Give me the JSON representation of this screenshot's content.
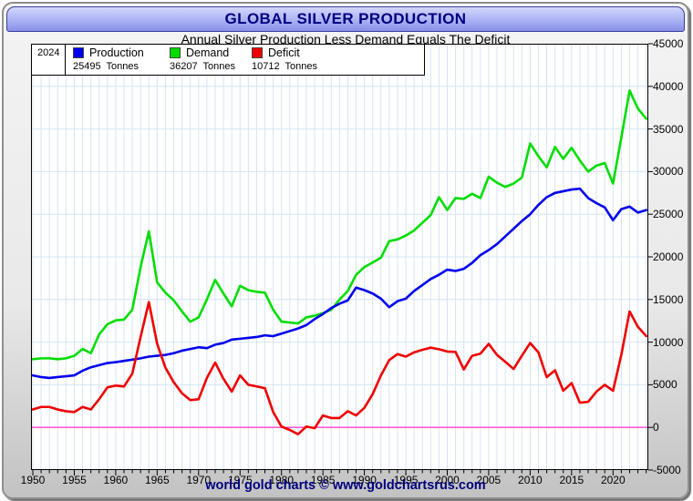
{
  "window": {
    "title": "GLOBAL SILVER PRODUCTION",
    "subtitle": "Annual Silver Production Less Demand Equals The Deficit",
    "footer": "world gold charts © www.goldchartsrus.com"
  },
  "legend": {
    "year": "2024",
    "items": [
      {
        "label": "Production",
        "value": "25495  Tonnes",
        "color": "#0000ee"
      },
      {
        "label": "Demand",
        "value": "36207  Tonnes",
        "color": "#00dd00"
      },
      {
        "label": "Deficit",
        "value": "10712  Tonnes",
        "color": "#ee0000"
      }
    ]
  },
  "colors": {
    "title_text": "#000080",
    "grid": "#d6e4f6",
    "zero_line": "#ff44cc",
    "axis": "#000000"
  },
  "chart_data": {
    "type": "line",
    "title": "GLOBAL SILVER PRODUCTION",
    "subtitle": "Annual Silver Production Less Demand Equals The Deficit",
    "unit": "Tonnes",
    "grid": true,
    "legend_position": "top-left",
    "ylim": [
      -5000,
      45000
    ],
    "ytick_step": 5000,
    "xticks": [
      1950,
      1955,
      1960,
      1965,
      1970,
      1975,
      1980,
      1985,
      1990,
      1995,
      2000,
      2005,
      2010,
      2015,
      2020
    ],
    "x": [
      1950,
      1951,
      1952,
      1953,
      1954,
      1955,
      1956,
      1957,
      1958,
      1959,
      1960,
      1961,
      1962,
      1963,
      1964,
      1965,
      1966,
      1967,
      1968,
      1969,
      1970,
      1971,
      1972,
      1973,
      1974,
      1975,
      1976,
      1977,
      1978,
      1979,
      1980,
      1981,
      1982,
      1983,
      1984,
      1985,
      1986,
      1987,
      1988,
      1989,
      1990,
      1991,
      1992,
      1993,
      1994,
      1995,
      1996,
      1997,
      1998,
      1999,
      2000,
      2001,
      2002,
      2003,
      2004,
      2005,
      2006,
      2007,
      2008,
      2009,
      2010,
      2011,
      2012,
      2013,
      2014,
      2015,
      2016,
      2017,
      2018,
      2019,
      2020,
      2021,
      2022,
      2023,
      2024
    ],
    "series": [
      {
        "name": "Production",
        "color": "#0000ee",
        "values": [
          6100,
          5900,
          5800,
          5900,
          6000,
          6100,
          6650,
          7050,
          7300,
          7550,
          7650,
          7800,
          7950,
          8100,
          8300,
          8400,
          8500,
          8700,
          9000,
          9200,
          9400,
          9300,
          9700,
          9900,
          10300,
          10400,
          10500,
          10600,
          10800,
          10700,
          11000,
          11300,
          11600,
          12000,
          12700,
          13300,
          14000,
          14500,
          14900,
          16400,
          16100,
          15700,
          15100,
          14100,
          14800,
          15100,
          16000,
          16700,
          17400,
          17900,
          18500,
          18350,
          18600,
          19300,
          20200,
          20800,
          21500,
          22400,
          23300,
          24200,
          25000,
          26100,
          27000,
          27500,
          27700,
          27900,
          28000,
          26900,
          26300,
          25800,
          24300,
          25600,
          25900,
          25200,
          25495
        ]
      },
      {
        "name": "Demand",
        "color": "#00dd00",
        "values": [
          8000,
          8100,
          8100,
          8000,
          8100,
          8400,
          9200,
          8700,
          10900,
          12100,
          12550,
          12650,
          13800,
          18800,
          23000,
          17000,
          15800,
          14900,
          13600,
          12400,
          12900,
          15000,
          17300,
          15700,
          14200,
          16600,
          16100,
          15900,
          15800,
          13800,
          12400,
          12300,
          12200,
          12900,
          13100,
          13400,
          13800,
          15000,
          16000,
          17900,
          18800,
          19350,
          19900,
          21850,
          22050,
          22500,
          23100,
          24000,
          24900,
          27000,
          25500,
          26900,
          26800,
          27400,
          26900,
          29400,
          28700,
          28200,
          28600,
          29300,
          33300,
          31800,
          30500,
          32900,
          31500,
          32800,
          31300,
          30000,
          30700,
          31000,
          28600,
          34000,
          39500,
          37400,
          36207
        ]
      },
      {
        "name": "Deficit",
        "color": "#ee0000",
        "values": [
          2100,
          2400,
          2400,
          2100,
          1900,
          1800,
          2400,
          2100,
          3300,
          4700,
          4900,
          4800,
          6300,
          10600,
          14700,
          9800,
          7000,
          5300,
          4000,
          3200,
          3300,
          5800,
          7600,
          5700,
          4200,
          6100,
          5000,
          4800,
          4600,
          1800,
          100,
          -300,
          -800,
          100,
          -100,
          1400,
          1100,
          1100,
          1900,
          1400,
          2300,
          3900,
          6100,
          7900,
          8600,
          8300,
          8800,
          9100,
          9350,
          9170,
          8900,
          8850,
          6800,
          8400,
          8650,
          9800,
          8500,
          7700,
          6850,
          8400,
          9900,
          8800,
          5900,
          6700,
          4300,
          5200,
          2900,
          3000,
          4200,
          5000,
          4300,
          8500,
          13600,
          11800,
          10712
        ]
      }
    ]
  }
}
